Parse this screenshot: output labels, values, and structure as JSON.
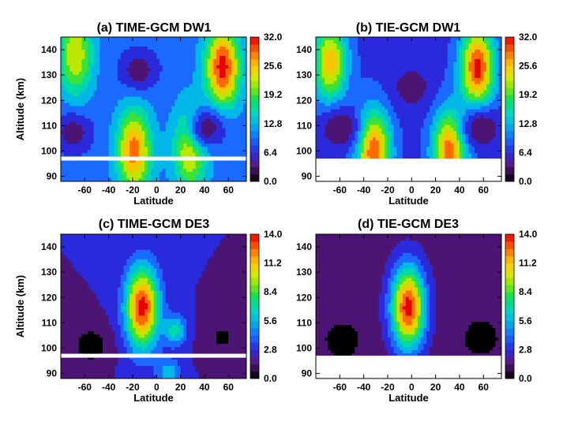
{
  "chart_data": [
    {
      "type": "heatmap",
      "title": "(a) TIME-GCM  DW1",
      "xlabel": "Latitude",
      "ylabel": "Altitude (km)",
      "xlim": [
        -80,
        75
      ],
      "ylim": [
        88,
        145
      ],
      "xticks": [
        -60,
        -40,
        -20,
        0,
        20,
        40,
        60
      ],
      "yticks": [
        90,
        100,
        110,
        120,
        130,
        140
      ],
      "colorbar_ticks": [
        "32.0",
        "25.6",
        "19.2",
        "12.8",
        "6.4",
        "0.0"
      ],
      "colorbar_range": [
        0,
        32
      ],
      "gap_at_altitude": 97,
      "blank_below": false,
      "features": [
        {
          "lat": -68,
          "alt": 138,
          "value": 24,
          "kind": "maximum"
        },
        {
          "lat": 55,
          "alt": 133,
          "value": 32,
          "kind": "maximum"
        },
        {
          "lat": -19,
          "alt": 100,
          "value": 29,
          "kind": "maximum"
        },
        {
          "lat": 28,
          "alt": 101,
          "value": 25,
          "kind": "maximum"
        },
        {
          "lat": 42,
          "alt": 109,
          "value": 3,
          "kind": "minimum"
        },
        {
          "lat": -70,
          "alt": 107,
          "value": 3,
          "kind": "minimum"
        },
        {
          "lat": -15,
          "alt": 132,
          "value": 3,
          "kind": "minimum"
        }
      ]
    },
    {
      "type": "heatmap",
      "title": "(b) TIE-GCM  DW1",
      "xlabel": "Latitude",
      "ylabel": "",
      "xlim": [
        -80,
        75
      ],
      "ylim": [
        88,
        145
      ],
      "xticks": [
        -60,
        -40,
        -20,
        0,
        20,
        40,
        60
      ],
      "yticks": [
        90,
        100,
        110,
        120,
        130,
        140
      ],
      "colorbar_ticks": [
        "32.0",
        "25.6",
        "19.2",
        "12.8",
        "6.4",
        "0.0"
      ],
      "colorbar_range": [
        0,
        32
      ],
      "gap_at_altitude": null,
      "blank_below": true,
      "features": [
        {
          "lat": -68,
          "alt": 135,
          "value": 26,
          "kind": "maximum"
        },
        {
          "lat": 55,
          "alt": 133,
          "value": 32,
          "kind": "maximum"
        },
        {
          "lat": -32,
          "alt": 100,
          "value": 30,
          "kind": "maximum"
        },
        {
          "lat": 32,
          "alt": 100,
          "value": 30,
          "kind": "maximum"
        },
        {
          "lat": -60,
          "alt": 109,
          "value": 2,
          "kind": "minimum"
        },
        {
          "lat": 58,
          "alt": 109,
          "value": 2,
          "kind": "minimum"
        },
        {
          "lat": 0,
          "alt": 125,
          "value": 3,
          "kind": "minimum"
        }
      ]
    },
    {
      "type": "heatmap",
      "title": "(c) TIME-GCM  DE3",
      "xlabel": "Latitude",
      "ylabel": "Altitude (km)",
      "xlim": [
        -80,
        75
      ],
      "ylim": [
        88,
        145
      ],
      "xticks": [
        -60,
        -40,
        -20,
        0,
        20,
        40,
        60
      ],
      "yticks": [
        90,
        100,
        110,
        120,
        130,
        140
      ],
      "colorbar_ticks": [
        "14.0",
        "11.2",
        "8.4",
        "5.6",
        "2.8",
        "0.0"
      ],
      "colorbar_range": [
        0,
        14
      ],
      "gap_at_altitude": 97,
      "blank_below": false,
      "features": [
        {
          "lat": -12,
          "alt": 116,
          "value": 14,
          "kind": "maximum"
        },
        {
          "lat": 15,
          "alt": 107,
          "value": 7,
          "kind": "maximum"
        },
        {
          "lat": 10,
          "alt": 90,
          "value": 6,
          "kind": "maximum"
        },
        {
          "lat": -55,
          "alt": 101,
          "value": 0,
          "kind": "minimum"
        },
        {
          "lat": 55,
          "alt": 104,
          "value": 0.5,
          "kind": "minimum"
        }
      ]
    },
    {
      "type": "heatmap",
      "title": "(d) TIE-GCM  DE3",
      "xlabel": "Latitude",
      "ylabel": "",
      "xlim": [
        -80,
        75
      ],
      "ylim": [
        88,
        145
      ],
      "xticks": [
        -60,
        -40,
        -20,
        0,
        20,
        40,
        60
      ],
      "yticks": [
        90,
        100,
        110,
        120,
        130,
        140
      ],
      "colorbar_ticks": [
        "14.0",
        "11.2",
        "8.4",
        "5.6",
        "2.8",
        "0.0"
      ],
      "colorbar_range": [
        0,
        14
      ],
      "gap_at_altitude": null,
      "blank_below": true,
      "features": [
        {
          "lat": -3,
          "alt": 116,
          "value": 14,
          "kind": "maximum"
        },
        {
          "lat": -58,
          "alt": 103,
          "value": 0,
          "kind": "minimum"
        },
        {
          "lat": 58,
          "alt": 104,
          "value": 0,
          "kind": "minimum"
        },
        {
          "lat": -70,
          "alt": 125,
          "value": 2,
          "kind": "minimum"
        }
      ]
    }
  ]
}
